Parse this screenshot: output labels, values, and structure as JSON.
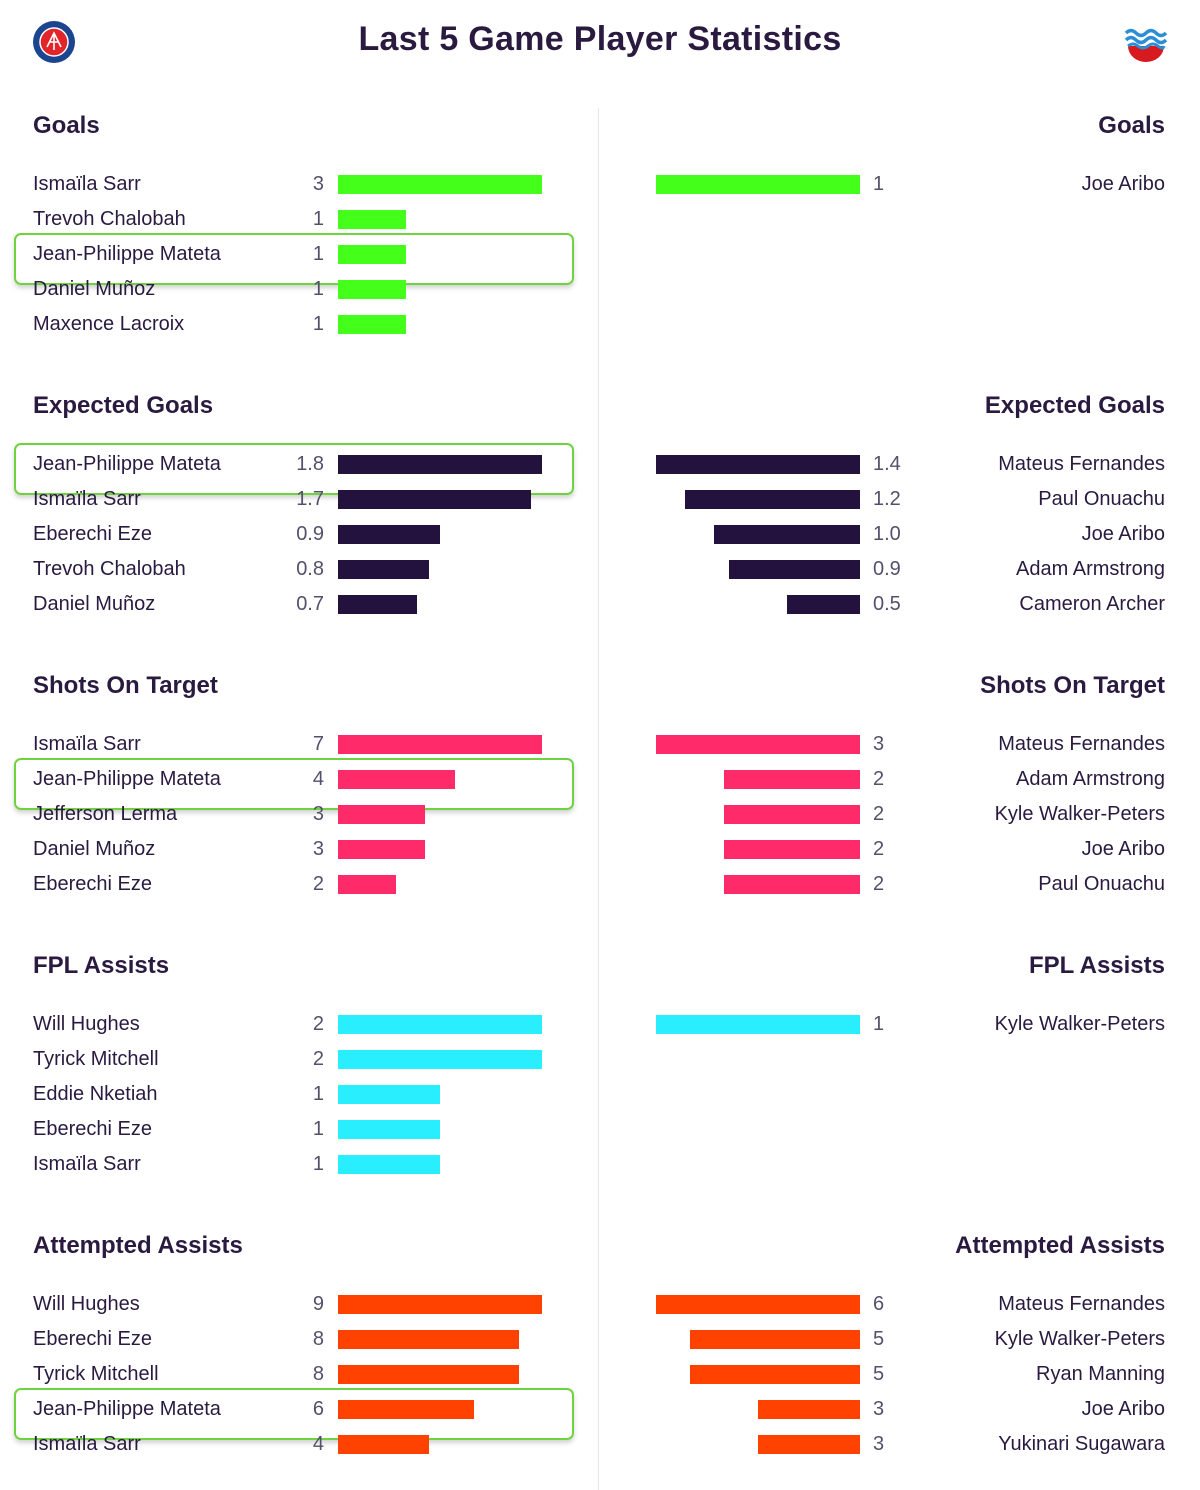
{
  "header": {
    "title": "Last 5 Game Player Statistics",
    "left_crest_icon": "crystal-palace-crest-icon",
    "right_crest_icon": "southampton-crest-icon"
  },
  "colors": {
    "goals": "#44ff19",
    "expected_goals": "#24123e",
    "shots_on_target": "#ff2a6a",
    "fpl_assists": "#28eefe",
    "attempted_assists": "#ff4200",
    "highlight": "#6ed33f"
  },
  "chart_data": [
    {
      "type": "bar",
      "title": "Goals",
      "color": "goals",
      "left": [
        {
          "name": "Ismaïla Sarr",
          "label": "3",
          "value": 3
        },
        {
          "name": "Trevoh Chalobah",
          "label": "1",
          "value": 1
        },
        {
          "name": "Jean-Philippe Mateta",
          "label": "1",
          "value": 1,
          "highlighted": true
        },
        {
          "name": "Daniel Muñoz",
          "label": "1",
          "value": 1
        },
        {
          "name": "Maxence Lacroix",
          "label": "1",
          "value": 1
        }
      ],
      "right": [
        {
          "name": "Joe Aribo",
          "label": "1",
          "value": 1
        }
      ]
    },
    {
      "type": "bar",
      "title": "Expected Goals",
      "color": "expected_goals",
      "left": [
        {
          "name": "Jean-Philippe Mateta",
          "label": "1.8",
          "value": 1.8,
          "highlighted": true
        },
        {
          "name": "Ismaïla Sarr",
          "label": "1.7",
          "value": 1.7
        },
        {
          "name": "Eberechi Eze",
          "label": "0.9",
          "value": 0.9
        },
        {
          "name": "Trevoh Chalobah",
          "label": "0.8",
          "value": 0.8
        },
        {
          "name": "Daniel Muñoz",
          "label": "0.7",
          "value": 0.7
        }
      ],
      "right": [
        {
          "name": "Mateus Fernandes",
          "label": "1.4",
          "value": 1.4
        },
        {
          "name": "Paul Onuachu",
          "label": "1.2",
          "value": 1.2
        },
        {
          "name": "Joe Aribo",
          "label": "1.0",
          "value": 1.0
        },
        {
          "name": "Adam Armstrong",
          "label": "0.9",
          "value": 0.9
        },
        {
          "name": "Cameron Archer",
          "label": "0.5",
          "value": 0.5
        }
      ]
    },
    {
      "type": "bar",
      "title": "Shots On Target",
      "color": "shots_on_target",
      "left": [
        {
          "name": "Ismaïla Sarr",
          "label": "7",
          "value": 7
        },
        {
          "name": "Jean-Philippe Mateta",
          "label": "4",
          "value": 4,
          "highlighted": true
        },
        {
          "name": "Jefferson Lerma",
          "label": "3",
          "value": 3
        },
        {
          "name": "Daniel Muñoz",
          "label": "3",
          "value": 3
        },
        {
          "name": "Eberechi Eze",
          "label": "2",
          "value": 2
        }
      ],
      "right": [
        {
          "name": "Mateus Fernandes",
          "label": "3",
          "value": 3
        },
        {
          "name": "Adam Armstrong",
          "label": "2",
          "value": 2
        },
        {
          "name": "Kyle Walker-Peters",
          "label": "2",
          "value": 2
        },
        {
          "name": "Joe Aribo",
          "label": "2",
          "value": 2
        },
        {
          "name": "Paul Onuachu",
          "label": "2",
          "value": 2
        }
      ]
    },
    {
      "type": "bar",
      "title": "FPL Assists",
      "color": "fpl_assists",
      "left": [
        {
          "name": "Will Hughes",
          "label": "2",
          "value": 2
        },
        {
          "name": "Tyrick Mitchell",
          "label": "2",
          "value": 2
        },
        {
          "name": "Eddie Nketiah",
          "label": "1",
          "value": 1
        },
        {
          "name": "Eberechi Eze",
          "label": "1",
          "value": 1
        },
        {
          "name": "Ismaïla Sarr",
          "label": "1",
          "value": 1
        }
      ],
      "right": [
        {
          "name": "Kyle Walker-Peters",
          "label": "1",
          "value": 1
        }
      ]
    },
    {
      "type": "bar",
      "title": "Attempted Assists",
      "color": "attempted_assists",
      "left": [
        {
          "name": "Will Hughes",
          "label": "9",
          "value": 9
        },
        {
          "name": "Eberechi Eze",
          "label": "8",
          "value": 8
        },
        {
          "name": "Tyrick Mitchell",
          "label": "8",
          "value": 8
        },
        {
          "name": "Jean-Philippe Mateta",
          "label": "6",
          "value": 6,
          "highlighted": true
        },
        {
          "name": "Ismaïla Sarr",
          "label": "4",
          "value": 4
        }
      ],
      "right": [
        {
          "name": "Mateus Fernandes",
          "label": "6",
          "value": 6
        },
        {
          "name": "Kyle Walker-Peters",
          "label": "5",
          "value": 5
        },
        {
          "name": "Ryan Manning",
          "label": "5",
          "value": 5
        },
        {
          "name": "Joe Aribo",
          "label": "3",
          "value": 3
        },
        {
          "name": "Yukinari Sugawara",
          "label": "3",
          "value": 3
        }
      ]
    }
  ]
}
